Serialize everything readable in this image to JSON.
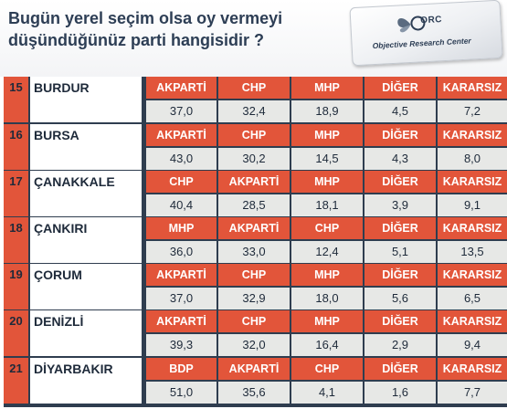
{
  "question": {
    "line1": "Bugün yerel seçim olsa oy vermeyi",
    "line2": "düşündüğünüz  parti hangisidir ?"
  },
  "logo": {
    "abbr": "ORC",
    "name": "Objective Research Center",
    "icon": "butterfly-logo-icon"
  },
  "colors": {
    "header": "#e2553a",
    "background": "#2f3d4f",
    "value_cell": "#e7e8e6",
    "title": "#2d3e55"
  },
  "rows": [
    {
      "no": "15",
      "city": "BURDUR",
      "parties": [
        "AKPARTİ",
        "CHP",
        "MHP",
        "DİĞER",
        "KARARSIZ"
      ],
      "values": [
        "37,0",
        "32,4",
        "18,9",
        "4,5",
        "7,2"
      ]
    },
    {
      "no": "16",
      "city": "BURSA",
      "parties": [
        "AKPARTİ",
        "CHP",
        "MHP",
        "DİĞER",
        "KARARSIZ"
      ],
      "values": [
        "43,0",
        "30,2",
        "14,5",
        "4,3",
        "8,0"
      ]
    },
    {
      "no": "17",
      "city": "ÇANAKKALE",
      "parties": [
        "CHP",
        "AKPARTİ",
        "MHP",
        "DİĞER",
        "KARARSIZ"
      ],
      "values": [
        "40,4",
        "28,5",
        "18,1",
        "3,9",
        "9,1"
      ]
    },
    {
      "no": "18",
      "city": "ÇANKIRI",
      "parties": [
        "MHP",
        "AKPARTİ",
        "CHP",
        "DİĞER",
        "KARARSIZ"
      ],
      "values": [
        "36,0",
        "33,0",
        "12,4",
        "5,1",
        "13,5"
      ]
    },
    {
      "no": "19",
      "city": "ÇORUM",
      "parties": [
        "AKPARTİ",
        "CHP",
        "MHP",
        "DİĞER",
        "KARARSIZ"
      ],
      "values": [
        "37,0",
        "32,9",
        "18,0",
        "5,6",
        "6,5"
      ]
    },
    {
      "no": "20",
      "city": "DENİZLİ",
      "parties": [
        "AKPARTİ",
        "CHP",
        "MHP",
        "DİĞER",
        "KARARSIZ"
      ],
      "values": [
        "39,3",
        "32,0",
        "16,4",
        "2,9",
        "9,4"
      ]
    },
    {
      "no": "21",
      "city": "DİYARBAKIR",
      "parties": [
        "BDP",
        "AKPARTİ",
        "CHP",
        "DİĞER",
        "KARARSIZ"
      ],
      "values": [
        "51,0",
        "35,6",
        "4,1",
        "1,6",
        "7,7"
      ]
    }
  ]
}
